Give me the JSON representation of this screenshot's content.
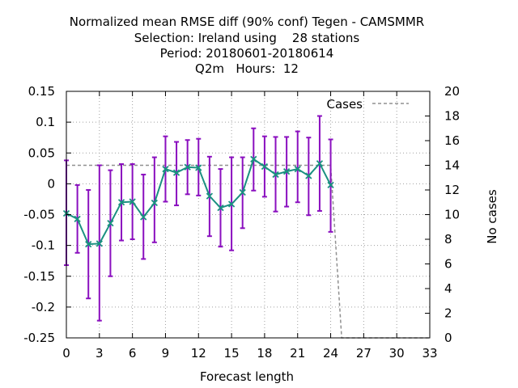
{
  "chart_data": {
    "type": "line",
    "title_lines": [
      "Normalized mean RMSE diff (90% conf) Tegen - CAMSMMR",
      "Selection: Ireland using    28 stations",
      "Period: 20180601-20180614",
      "Q2m   Hours:  12"
    ],
    "xlabel": "Forecast length",
    "ylabel": "",
    "y2label": "No cases",
    "xlim": [
      0,
      33
    ],
    "ylim": [
      -0.25,
      0.15
    ],
    "y2lim": [
      0,
      20
    ],
    "xticks": [
      0,
      3,
      6,
      9,
      12,
      15,
      18,
      21,
      24,
      27,
      30,
      33
    ],
    "xtick_labels": [
      "0",
      "3",
      "6",
      "9",
      "12",
      "15",
      "18",
      "21",
      "24",
      "27",
      "30",
      "33"
    ],
    "yticks": [
      -0.25,
      -0.2,
      -0.15,
      -0.1,
      -0.05,
      0,
      0.05,
      0.1,
      0.15
    ],
    "ytick_labels": [
      "-0.25",
      "-0.2",
      "-0.15",
      "-0.1",
      "-0.05",
      "0",
      "0.05",
      "0.1",
      "0.15"
    ],
    "y2ticks": [
      0,
      2,
      4,
      6,
      8,
      10,
      12,
      14,
      16,
      18,
      20
    ],
    "y2tick_labels": [
      "0",
      "2",
      "4",
      "6",
      "8",
      "10",
      "12",
      "14",
      "16",
      "18",
      "20"
    ],
    "grid": true,
    "legend": {
      "position": "top-right",
      "entries": [
        "Cases"
      ]
    },
    "series": [
      {
        "type": "line-errorbar",
        "x": [
          0,
          1,
          2,
          3,
          4,
          5,
          6,
          7,
          8,
          9,
          10,
          11,
          12,
          13,
          14,
          15,
          16,
          17,
          18,
          19,
          20,
          21,
          22,
          23,
          24
        ],
        "y": [
          -0.048,
          -0.057,
          -0.098,
          -0.097,
          -0.064,
          -0.03,
          -0.029,
          -0.054,
          -0.031,
          0.024,
          0.018,
          0.027,
          0.026,
          -0.02,
          -0.039,
          -0.033,
          -0.014,
          0.04,
          0.028,
          0.015,
          0.02,
          0.024,
          0.013,
          0.033,
          -0.002
        ],
        "err_low": [
          -0.132,
          -0.112,
          -0.186,
          -0.222,
          -0.15,
          -0.092,
          -0.09,
          -0.122,
          -0.095,
          -0.029,
          -0.035,
          -0.017,
          -0.019,
          -0.085,
          -0.102,
          -0.108,
          -0.072,
          -0.011,
          -0.021,
          -0.045,
          -0.037,
          -0.03,
          -0.051,
          -0.044,
          -0.078
        ],
        "err_high": [
          0.038,
          -0.002,
          -0.01,
          0.03,
          0.022,
          0.032,
          0.032,
          0.015,
          0.043,
          0.077,
          0.068,
          0.071,
          0.073,
          0.044,
          0.024,
          0.043,
          0.043,
          0.09,
          0.077,
          0.076,
          0.076,
          0.085,
          0.075,
          0.11,
          0.072
        ],
        "line_color": "#1a9080",
        "errorbar_color": "#8a0fbf"
      },
      {
        "name": "Cases",
        "axis": "y2",
        "x": [
          0,
          1,
          2,
          3,
          4,
          5,
          6,
          7,
          8,
          9,
          10,
          11,
          12,
          13,
          14,
          15,
          16,
          17,
          18,
          19,
          20,
          21,
          22,
          23,
          24,
          25,
          26,
          27,
          28,
          29,
          30,
          31,
          32,
          33
        ],
        "values": [
          14,
          14,
          14,
          14,
          14,
          14,
          14,
          14,
          14,
          14,
          14,
          14,
          14,
          14,
          14,
          14,
          14,
          14,
          14,
          14,
          14,
          14,
          14,
          14,
          14,
          0,
          0,
          0,
          0,
          0,
          0,
          0,
          0,
          0
        ],
        "color": "#909090",
        "dash": true
      }
    ]
  }
}
